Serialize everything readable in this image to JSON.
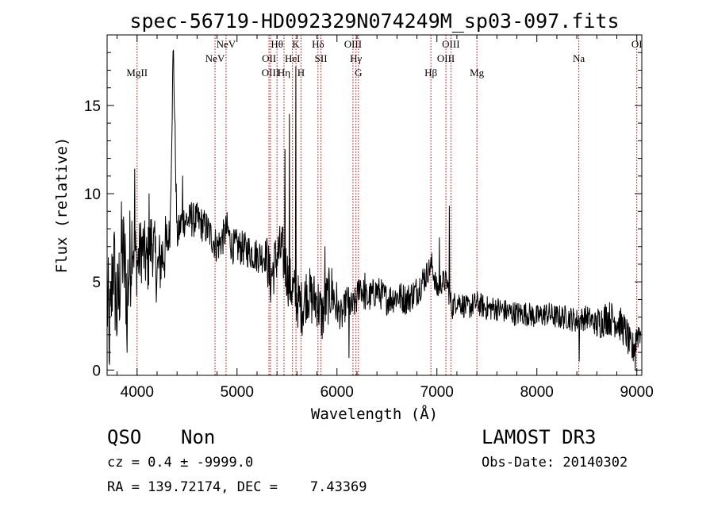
{
  "chart_data": {
    "type": "line",
    "title": "spec-56719-HD092329N074249M_sp03-097.fits",
    "xlabel": "Wavelength (Å)",
    "ylabel": "Flux (relative)",
    "xlim": [
      3700,
      9050
    ],
    "ylim": [
      -0.3,
      19
    ],
    "x_ticks": [
      4000,
      5000,
      6000,
      7000,
      8000,
      9000
    ],
    "y_ticks": [
      0,
      5,
      10,
      15
    ],
    "spectrum_anchors": [
      [
        3700,
        4.0
      ],
      [
        3730,
        2.0
      ],
      [
        3760,
        6.5
      ],
      [
        3800,
        3.0
      ],
      [
        3850,
        7.0
      ],
      [
        3900,
        4.5
      ],
      [
        3950,
        7.5
      ],
      [
        4000,
        6.0
      ],
      [
        4050,
        7.0
      ],
      [
        4100,
        6.0
      ],
      [
        4150,
        7.5
      ],
      [
        4200,
        5.5
      ],
      [
        4250,
        6.5
      ],
      [
        4300,
        7.0
      ],
      [
        4330,
        8.0
      ],
      [
        4362,
        18.3
      ],
      [
        4400,
        7.5
      ],
      [
        4450,
        8.5
      ],
      [
        4500,
        8.5
      ],
      [
        4600,
        8.5
      ],
      [
        4700,
        8.0
      ],
      [
        4800,
        7.0
      ],
      [
        4860,
        7.5
      ],
      [
        4900,
        8.0
      ],
      [
        4950,
        7.0
      ],
      [
        5000,
        7.0
      ],
      [
        5100,
        6.8
      ],
      [
        5200,
        6.5
      ],
      [
        5300,
        6.5
      ],
      [
        5330,
        5.0
      ],
      [
        5400,
        6.5
      ],
      [
        5450,
        6.8
      ],
      [
        5480,
        6.0
      ],
      [
        5520,
        5.0
      ],
      [
        5560,
        4.5
      ],
      [
        5600,
        4.0
      ],
      [
        5650,
        3.5
      ],
      [
        5700,
        4.5
      ],
      [
        5750,
        4.0
      ],
      [
        5800,
        4.0
      ],
      [
        5850,
        3.0
      ],
      [
        5900,
        4.0
      ],
      [
        5950,
        4.5
      ],
      [
        6000,
        3.5
      ],
      [
        6050,
        3.0
      ],
      [
        6100,
        4.0
      ],
      [
        6150,
        3.5
      ],
      [
        6200,
        4.0
      ],
      [
        6230,
        5.0
      ],
      [
        6250,
        4.5
      ],
      [
        6300,
        4.0
      ],
      [
        6400,
        4.5
      ],
      [
        6500,
        4.0
      ],
      [
        6600,
        4.2
      ],
      [
        6700,
        4.0
      ],
      [
        6800,
        4.5
      ],
      [
        6900,
        5.5
      ],
      [
        6950,
        6.0
      ],
      [
        7000,
        4.5
      ],
      [
        7050,
        5.0
      ],
      [
        7100,
        5.0
      ],
      [
        7150,
        3.5
      ],
      [
        7200,
        4.0
      ],
      [
        7300,
        3.5
      ],
      [
        7400,
        3.8
      ],
      [
        7500,
        3.5
      ],
      [
        7600,
        3.5
      ],
      [
        7700,
        3.3
      ],
      [
        7800,
        3.2
      ],
      [
        7900,
        3.2
      ],
      [
        8000,
        3.0
      ],
      [
        8100,
        3.2
      ],
      [
        8200,
        3.0
      ],
      [
        8300,
        3.0
      ],
      [
        8400,
        2.8
      ],
      [
        8500,
        3.0
      ],
      [
        8600,
        2.6
      ],
      [
        8700,
        3.0
      ],
      [
        8800,
        2.8
      ],
      [
        8850,
        2.5
      ],
      [
        8900,
        2.0
      ],
      [
        8950,
        1.0
      ],
      [
        9000,
        2.0
      ],
      [
        9050,
        2.5
      ]
    ],
    "spectrum_spikes": [
      [
        3720,
        0.5
      ],
      [
        3790,
        10.0
      ],
      [
        3900,
        1.0
      ],
      [
        3975,
        11.4
      ],
      [
        4050,
        9.5
      ],
      [
        4120,
        10.0
      ],
      [
        4362,
        18.3
      ],
      [
        4455,
        11.0
      ],
      [
        4545,
        9.5
      ],
      [
        5480,
        12.5
      ],
      [
        5525,
        14.5
      ],
      [
        5587,
        17.2
      ],
      [
        5630,
        16.5
      ],
      [
        5880,
        7.0
      ],
      [
        6120,
        0.7
      ],
      [
        6230,
        6.0
      ],
      [
        6280,
        5.5
      ],
      [
        7025,
        7.5
      ],
      [
        7070,
        6.5
      ],
      [
        7123,
        9.3
      ],
      [
        8425,
        0.5
      ],
      [
        8950,
        0.0
      ],
      [
        8985,
        0.0
      ]
    ],
    "spectral_lines": [
      {
        "label": "MgII",
        "x": 4000,
        "row": 3
      },
      {
        "label": "NeV",
        "x": 4780,
        "row": 2
      },
      {
        "label": "NeV",
        "x": 4890,
        "row": 1
      },
      {
        "label": "OII",
        "x": 5320,
        "row": 2
      },
      {
        "label": "OIII",
        "x": 5335,
        "row": 3
      },
      {
        "label": "Hθ",
        "x": 5400,
        "row": 1
      },
      {
        "label": "Hη",
        "x": 5470,
        "row": 3
      },
      {
        "label": "HeI",
        "x": 5555,
        "row": 2
      },
      {
        "label": "K",
        "x": 5590,
        "row": 1
      },
      {
        "label": "H",
        "x": 5640,
        "row": 3
      },
      {
        "label": "Hδ",
        "x": 5810,
        "row": 1
      },
      {
        "label": "SII",
        "x": 5840,
        "row": 2
      },
      {
        "label": "OIII",
        "x": 6160,
        "row": 1
      },
      {
        "label": "Hγ",
        "x": 6190,
        "row": 2
      },
      {
        "label": "G",
        "x": 6215,
        "row": 3
      },
      {
        "label": "Hβ",
        "x": 6940,
        "row": 3
      },
      {
        "label": "OIII",
        "x": 7090,
        "row": 2
      },
      {
        "label": "OIII",
        "x": 7140,
        "row": 1
      },
      {
        "label": "Mg",
        "x": 7400,
        "row": 3
      },
      {
        "label": "Na",
        "x": 8420,
        "row": 2
      },
      {
        "label": "OI",
        "x": 9000,
        "row": 1
      }
    ]
  },
  "info": {
    "class": "QSO",
    "subclass": "Non",
    "survey": "LAMOST DR3",
    "cz": "cz = 0.4 ± -9999.0",
    "obs_date": "Obs-Date: 20140302",
    "radec": "RA = 139.72174, DEC =    7.43369"
  },
  "colors": {
    "spectrum": "#000000",
    "line_marker": "#c00000"
  }
}
